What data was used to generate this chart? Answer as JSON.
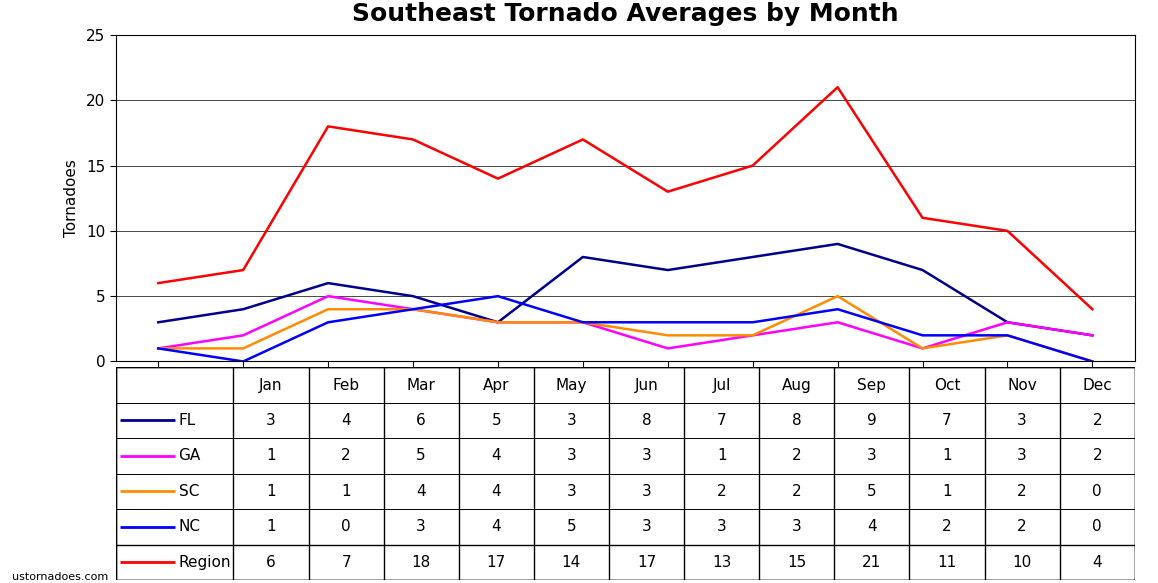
{
  "title": "Southeast Tornado Averages by Month",
  "months": [
    "Jan",
    "Feb",
    "Mar",
    "Apr",
    "May",
    "Jun",
    "Jul",
    "Aug",
    "Sep",
    "Oct",
    "Nov",
    "Dec"
  ],
  "series_order": [
    "FL",
    "GA",
    "SC",
    "NC",
    "Region"
  ],
  "series": {
    "FL": {
      "values": [
        3,
        4,
        6,
        5,
        3,
        8,
        7,
        8,
        9,
        7,
        3,
        2
      ],
      "color": "#00008B",
      "label": "FL"
    },
    "GA": {
      "values": [
        1,
        2,
        5,
        4,
        3,
        3,
        1,
        2,
        3,
        1,
        3,
        2
      ],
      "color": "#FF00FF",
      "label": "GA"
    },
    "SC": {
      "values": [
        1,
        1,
        4,
        4,
        3,
        3,
        2,
        2,
        5,
        1,
        2,
        0
      ],
      "color": "#FF8C00",
      "label": "SC"
    },
    "NC": {
      "values": [
        1,
        0,
        3,
        4,
        5,
        3,
        3,
        3,
        4,
        2,
        2,
        0
      ],
      "color": "#0000FF",
      "label": "NC"
    },
    "Region": {
      "values": [
        6,
        7,
        18,
        17,
        14,
        17,
        13,
        15,
        21,
        11,
        10,
        4
      ],
      "color": "#FF0000",
      "label": "Region"
    }
  },
  "ylabel": "Tornadoes",
  "ylim": [
    0,
    25
  ],
  "yticks": [
    0,
    5,
    10,
    15,
    20,
    25
  ],
  "background_color": "#FFFFFF",
  "title_fontsize": 18,
  "axis_fontsize": 11,
  "table_fontsize": 11,
  "watermark": "ustornadoes.com"
}
